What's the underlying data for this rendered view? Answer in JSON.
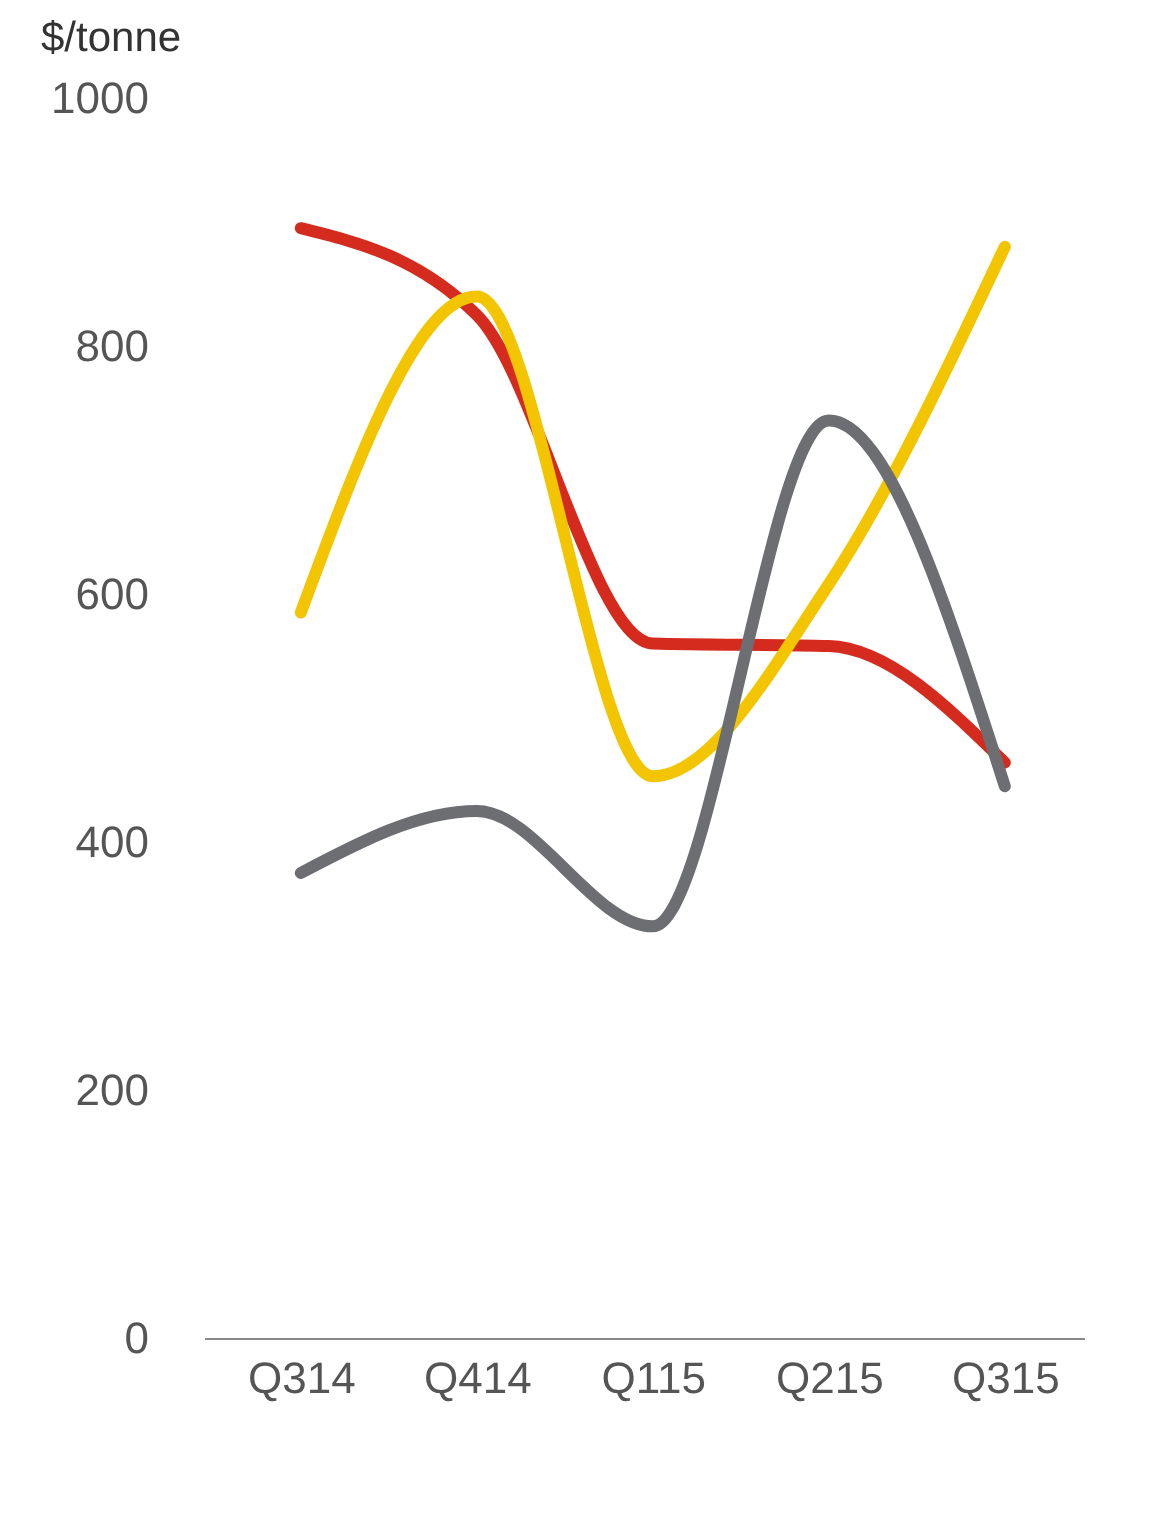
{
  "chart_data": {
    "type": "line",
    "ylabel": "$/tonne",
    "categories": [
      "Q314",
      "Q414",
      "Q115",
      "Q215",
      "Q315"
    ],
    "series": [
      {
        "color": "#d52b1e",
        "values": [
          895,
          825,
          560,
          558,
          464
        ]
      },
      {
        "color": "#f2c500",
        "values": [
          585,
          840,
          453,
          608,
          880
        ]
      },
      {
        "color": "#6d6e71",
        "values": [
          375,
          425,
          332,
          740,
          445
        ]
      }
    ],
    "ylim": [
      0,
      1000
    ],
    "yticks": [
      0,
      200,
      400,
      600,
      800,
      1000
    ],
    "grid": false,
    "legend": false,
    "marker": "none",
    "line_style": "solid"
  }
}
